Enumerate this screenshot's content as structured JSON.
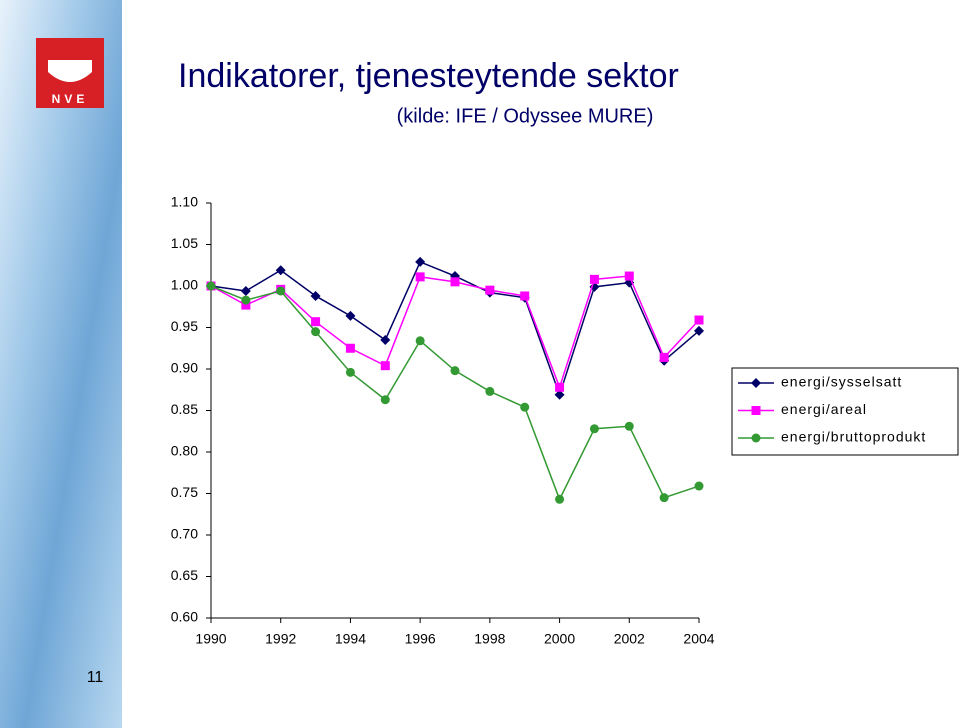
{
  "logo_text": "NVE",
  "page_number": "11",
  "chart_data": {
    "type": "line",
    "title": "Indikatorer, tjenesteytende sektor",
    "subtitle": "(kilde: IFE / Odyssee MURE)",
    "x": [
      1990,
      1991,
      1992,
      1993,
      1994,
      1995,
      1996,
      1997,
      1998,
      1999,
      2000,
      2001,
      2002,
      2003,
      2004
    ],
    "xlim": [
      1990,
      2004
    ],
    "xticks": [
      1990,
      1992,
      1994,
      1996,
      1998,
      2000,
      2002,
      2004
    ],
    "ylim": [
      0.6,
      1.1
    ],
    "yticks": [
      {
        "value": 0.6,
        "label": "0.60"
      },
      {
        "value": 0.65,
        "label": "0.65"
      },
      {
        "value": 0.7,
        "label": "0.70"
      },
      {
        "value": 0.75,
        "label": "0.75"
      },
      {
        "value": 0.8,
        "label": "0.80"
      },
      {
        "value": 0.85,
        "label": "0.85"
      },
      {
        "value": 0.9,
        "label": "0.90"
      },
      {
        "value": 0.95,
        "label": "0.95"
      },
      {
        "value": 1.0,
        "label": "1.00"
      },
      {
        "value": 1.05,
        "label": "1.05"
      },
      {
        "value": 1.1,
        "label": "1.10"
      }
    ],
    "grid": false,
    "legend": "right",
    "series": [
      {
        "name": "energi/sysselsatt",
        "color": "#000066",
        "marker": "diamond",
        "values": [
          1.0,
          0.994,
          1.019,
          0.988,
          0.964,
          0.935,
          1.029,
          1.012,
          0.992,
          0.986,
          0.869,
          0.999,
          1.004,
          0.91,
          0.946
        ]
      },
      {
        "name": "energi/areal",
        "color": "#ff00ff",
        "marker": "square",
        "values": [
          1.0,
          0.977,
          0.996,
          0.957,
          0.925,
          0.904,
          1.011,
          1.005,
          0.995,
          0.988,
          0.878,
          1.008,
          1.012,
          0.914,
          0.959
        ]
      },
      {
        "name": "energi/bruttoprodukt",
        "color": "#339933",
        "marker": "circle",
        "values": [
          1.0,
          0.983,
          0.994,
          0.945,
          0.896,
          0.863,
          0.934,
          0.898,
          0.873,
          0.854,
          0.743,
          0.828,
          0.831,
          0.745,
          0.759
        ]
      }
    ]
  }
}
